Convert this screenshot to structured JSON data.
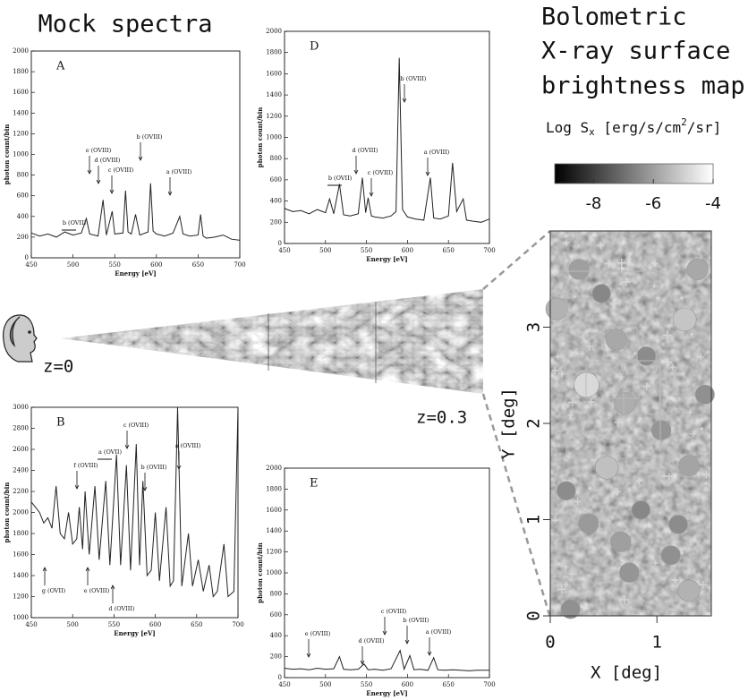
{
  "titles": {
    "left": "Mock spectra",
    "right": [
      "Bolometric",
      "X-ray surface",
      "brightness map"
    ]
  },
  "labels": {
    "near": "z=0",
    "far": "z=0.3"
  },
  "chart_data": [
    {
      "type": "line",
      "label": "A",
      "xlabel": "Energy [eV]",
      "ylabel": "photon count/bin",
      "color": "#222222",
      "x": [
        450,
        460,
        470,
        480,
        490,
        500,
        510,
        516,
        520,
        530,
        536,
        540,
        547,
        550,
        560,
        563,
        566,
        570,
        575,
        580,
        590,
        593,
        596,
        600,
        610,
        620,
        628,
        632,
        640,
        650,
        653,
        656,
        660,
        670,
        680,
        690,
        700
      ],
      "values": [
        240,
        210,
        230,
        200,
        250,
        220,
        240,
        380,
        230,
        210,
        560,
        220,
        450,
        230,
        240,
        650,
        250,
        230,
        420,
        220,
        250,
        720,
        260,
        230,
        210,
        240,
        400,
        230,
        210,
        220,
        420,
        210,
        190,
        200,
        220,
        180,
        170
      ],
      "xlim": [
        450,
        700
      ],
      "ylim": [
        0,
        2000
      ],
      "xticks": [
        450,
        500,
        550,
        600,
        650,
        700
      ],
      "yticks": [
        0,
        200,
        400,
        600,
        800,
        1000,
        1200,
        1400,
        1600,
        1800,
        2000
      ],
      "annotations": [
        "b (OVII)",
        "e (OVIII)",
        "d (OVIII)",
        "c (OVIII)",
        "b (OVIII)",
        "a (OVIII)"
      ]
    },
    {
      "type": "line",
      "label": "D",
      "xlabel": "Energy [eV]",
      "ylabel": "photon count/bin",
      "color": "#222222",
      "x": [
        450,
        460,
        470,
        480,
        490,
        500,
        505,
        510,
        517,
        522,
        530,
        540,
        545,
        549,
        552,
        556,
        560,
        570,
        580,
        586,
        590,
        594,
        600,
        610,
        620,
        628,
        632,
        640,
        650,
        655,
        660,
        668,
        672,
        680,
        690,
        700
      ],
      "values": [
        330,
        300,
        310,
        280,
        320,
        290,
        420,
        280,
        560,
        270,
        260,
        280,
        620,
        290,
        430,
        260,
        250,
        240,
        260,
        300,
        1750,
        320,
        250,
        230,
        220,
        620,
        240,
        230,
        260,
        760,
        300,
        420,
        220,
        210,
        200,
        230
      ],
      "xlim": [
        450,
        700
      ],
      "ylim": [
        0,
        2000
      ],
      "xticks": [
        450,
        500,
        550,
        600,
        650,
        700
      ],
      "yticks": [
        0,
        200,
        400,
        600,
        800,
        1000,
        1200,
        1400,
        1600,
        1800,
        2000
      ],
      "annotations": [
        "b (OVII)",
        "d (OVIII)",
        "c (OVIII)",
        "b (OVIII)",
        "a (OVIII)"
      ]
    },
    {
      "type": "line",
      "label": "B",
      "xlabel": "Energy [eV]",
      "ylabel": "photon count/bin",
      "color": "#222222",
      "x": [
        450,
        455,
        460,
        465,
        470,
        475,
        480,
        485,
        490,
        495,
        500,
        505,
        508,
        512,
        515,
        520,
        527,
        532,
        540,
        545,
        553,
        558,
        565,
        570,
        577,
        581,
        585,
        590,
        595,
        600,
        605,
        613,
        618,
        622,
        627,
        632,
        640,
        645,
        652,
        658,
        665,
        670,
        675,
        683,
        688,
        695,
        700
      ],
      "values": [
        2100,
        2050,
        2000,
        1900,
        1950,
        1850,
        2250,
        1800,
        1750,
        2000,
        1700,
        1750,
        2050,
        1650,
        2200,
        1600,
        2250,
        1550,
        2300,
        1500,
        2550,
        1500,
        2450,
        1450,
        2650,
        1500,
        2300,
        1400,
        1450,
        2000,
        1350,
        2050,
        1300,
        1350,
        3000,
        1300,
        1800,
        1300,
        1550,
        1250,
        1500,
        1200,
        1250,
        1700,
        1200,
        1250,
        3000
      ],
      "xlim": [
        450,
        700
      ],
      "ylim": [
        1000,
        3000
      ],
      "xticks": [
        450,
        500,
        550,
        600,
        650,
        700
      ],
      "yticks": [
        1000,
        1200,
        1400,
        1600,
        1800,
        2000,
        2200,
        2400,
        2600,
        2800,
        3000
      ],
      "annotations": [
        "c (OVIII)",
        "a (OVII)",
        "f (OVIII)",
        "b (OVIII)",
        "a (OVIII)",
        "g (OVII)",
        "e (OVIII)",
        "d (OVIII)"
      ]
    },
    {
      "type": "line",
      "label": "E",
      "xlabel": "Energy [eV]",
      "ylabel": "photon count/bin",
      "color": "#222222",
      "x": [
        450,
        460,
        470,
        480,
        490,
        500,
        510,
        517,
        522,
        530,
        540,
        547,
        552,
        560,
        570,
        580,
        591,
        596,
        603,
        608,
        615,
        625,
        632,
        637,
        645,
        655,
        665,
        675,
        685,
        700
      ],
      "values": [
        90,
        80,
        85,
        75,
        90,
        80,
        85,
        200,
        80,
        75,
        80,
        130,
        75,
        80,
        70,
        85,
        260,
        80,
        210,
        75,
        80,
        70,
        190,
        75,
        70,
        75,
        70,
        65,
        70,
        70
      ],
      "xlim": [
        450,
        700
      ],
      "ylim": [
        0,
        2000
      ],
      "xticks": [
        450,
        500,
        550,
        600,
        650,
        700
      ],
      "yticks": [
        0,
        200,
        400,
        600,
        800,
        1000,
        1200,
        1400,
        1600,
        1800,
        2000
      ],
      "annotations": [
        "e (OVIII)",
        "d (OVIII)",
        "c (OVIII)",
        "b (OVIII)",
        "a (OVIII)"
      ]
    },
    {
      "type": "map",
      "xlabel": "X [deg]",
      "ylabel": "Y [deg]",
      "x": [
        0.34,
        0.53,
        1.26,
        0.62,
        0.06,
        1.3,
        0.7,
        1.3,
        0.66,
        0.36,
        1.38,
        0.27,
        1.04,
        0.74,
        0.19,
        1.13,
        0.9,
        0.15,
        1.45,
        0.48,
        0.85,
        1.2
      ],
      "values": [
        2.4,
        1.54,
        3.08,
        2.87,
        3.19,
        1.56,
        2.21,
        0.26,
        0.77,
        0.96,
        3.6,
        3.6,
        1.93,
        0.45,
        0.07,
        0.63,
        2.7,
        1.3,
        2.3,
        3.35,
        1.1,
        0.95
      ],
      "brightness": [
        -4.8,
        -5.3,
        -5.2,
        -5.8,
        -5.6,
        -5.9,
        -5.7,
        -5.6,
        -6.0,
        -6.1,
        -5.8,
        -6.0,
        -6.2,
        -6.2,
        -6.3,
        -6.3,
        -6.4,
        -6.4,
        -6.3,
        -6.5,
        -6.5,
        -6.4
      ],
      "xlim": [
        0,
        1.51
      ],
      "ylim": [
        0,
        4.0
      ],
      "xticks": [
        0,
        1
      ],
      "yticks": [
        0,
        1,
        2,
        3
      ],
      "clim": [
        -9.3,
        -4
      ],
      "cticks": [
        -8,
        -6,
        -4
      ],
      "colorbar_label": [
        "Log S",
        "x",
        " [erg/s/cm",
        "2",
        "/sr]"
      ]
    }
  ]
}
